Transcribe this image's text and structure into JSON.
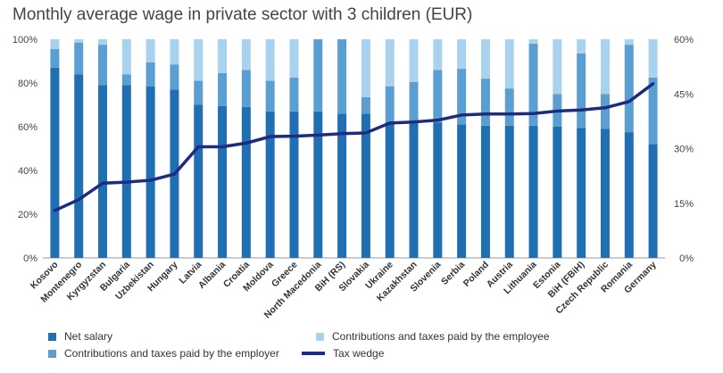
{
  "chart_data": {
    "type": "bar",
    "title": "Monthly average wage in private sector with 3 children (EUR)",
    "categories": [
      "Kosovo",
      "Montenegro",
      "Kyrgyzstan",
      "Bulgaria",
      "Uzbekistan",
      "Hungary",
      "Latvia",
      "Albania",
      "Croatia",
      "Moldova",
      "Greece",
      "North Macedonia",
      "BiH (RS)",
      "Slovakia",
      "Ukraine",
      "Kazakhstan",
      "Slovenia",
      "Serbia",
      "Poland",
      "Austria",
      "Lithuania",
      "Estonia",
      "BiH (FBiH)",
      "Czech Republic",
      "Romania",
      "Germany"
    ],
    "stacked": true,
    "left_axis": {
      "min": 0,
      "max": 100,
      "ticks": [
        "0%",
        "20%",
        "40%",
        "60%",
        "80%",
        "100%"
      ]
    },
    "right_axis": {
      "min": 0,
      "max": 60,
      "ticks": [
        "0%",
        "15%",
        "30%",
        "45%",
        "60%"
      ]
    },
    "series": [
      {
        "name": "Net salary",
        "axis": "left",
        "color": "#1f6fb2",
        "values": [
          87,
          84,
          79,
          79,
          78.5,
          77,
          70,
          69.5,
          69,
          67,
          67,
          67,
          66,
          66,
          62,
          62,
          62,
          61,
          60.5,
          60.5,
          60.5,
          60,
          59.5,
          59,
          57.5,
          52
        ]
      },
      {
        "name": "Contributions and taxes paid by the employer",
        "axis": "left",
        "color": "#5b9fd2",
        "values": [
          8.5,
          14.5,
          18.5,
          5,
          11,
          11.5,
          11,
          15,
          17,
          14,
          15.5,
          33,
          34,
          7.5,
          16.5,
          18.5,
          24,
          25.5,
          21.5,
          17,
          37.5,
          15,
          34,
          16,
          40,
          30.5
        ]
      },
      {
        "name": "Contributions and taxes paid by the employee",
        "axis": "left",
        "color": "#a9d2ee",
        "values": [
          4.5,
          1.5,
          2.5,
          16,
          10.5,
          11.5,
          19,
          15.5,
          14,
          19,
          17.5,
          0,
          0,
          26.5,
          21.5,
          19.5,
          14,
          13.5,
          18,
          22.5,
          2,
          25,
          6.5,
          25,
          2.5,
          17.5
        ]
      },
      {
        "name": "Tax wedge",
        "axis": "right",
        "type": "line",
        "color": "#1e2c80",
        "values": [
          13,
          16,
          20.5,
          20.8,
          21.3,
          23,
          30.5,
          30.5,
          31.5,
          33.3,
          33.4,
          33.7,
          34.1,
          34.3,
          37,
          37.3,
          37.8,
          39.2,
          39.5,
          39.5,
          39.6,
          40.3,
          40.6,
          41.2,
          42.9,
          47.8
        ]
      }
    ],
    "legend": {
      "net": "Net salary",
      "employer": "Contributions and taxes paid by the employer",
      "employee": "Contributions and taxes paid by the employee",
      "wedge": "Tax wedge"
    },
    "grid": false,
    "legend_position": "bottom"
  }
}
